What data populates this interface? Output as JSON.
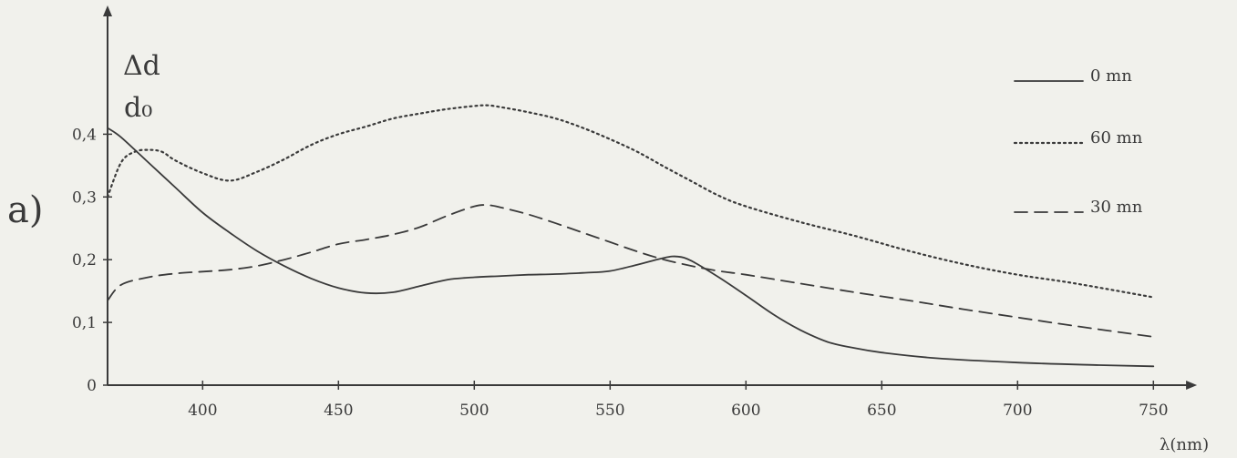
{
  "panel_label": "a)",
  "colors": {
    "ink": "#3a3a3a",
    "background": "#f1f1ec"
  },
  "chart_data": {
    "type": "line",
    "title": "",
    "xlabel": "λ(nm)",
    "ylabel_numerator": "Δd",
    "ylabel_denominator": "d₀",
    "xlim": [
      365,
      760
    ],
    "ylim": [
      0,
      0.46
    ],
    "x_ticks": [
      {
        "value": 400,
        "label": "400"
      },
      {
        "value": 450,
        "label": "450"
      },
      {
        "value": 500,
        "label": "500"
      },
      {
        "value": 550,
        "label": "550"
      },
      {
        "value": 600,
        "label": "600"
      },
      {
        "value": 650,
        "label": "650"
      },
      {
        "value": 700,
        "label": "700"
      },
      {
        "value": 750,
        "label": "750"
      }
    ],
    "y_ticks": [
      {
        "value": 0,
        "label": "0"
      },
      {
        "value": 0.1,
        "label": "0,1"
      },
      {
        "value": 0.2,
        "label": "0,2"
      },
      {
        "value": 0.3,
        "label": "0,3"
      },
      {
        "value": 0.4,
        "label": "0,4"
      }
    ],
    "grid": false,
    "legend_position": "top-right",
    "series": [
      {
        "name": "0 mn",
        "style": "solid",
        "x": [
          365,
          370,
          380,
          390,
          400,
          410,
          420,
          430,
          440,
          450,
          460,
          470,
          480,
          490,
          500,
          510,
          520,
          530,
          540,
          550,
          560,
          570,
          575,
          580,
          590,
          600,
          610,
          620,
          630,
          640,
          650,
          670,
          700,
          730,
          750
        ],
        "y": [
          0.41,
          0.395,
          0.355,
          0.315,
          0.275,
          0.243,
          0.214,
          0.19,
          0.17,
          0.155,
          0.147,
          0.148,
          0.158,
          0.168,
          0.172,
          0.174,
          0.176,
          0.177,
          0.179,
          0.182,
          0.192,
          0.203,
          0.205,
          0.198,
          0.172,
          0.143,
          0.113,
          0.088,
          0.069,
          0.059,
          0.052,
          0.043,
          0.036,
          0.032,
          0.03
        ]
      },
      {
        "name": "60 mn",
        "style": "dotted",
        "x": [
          365,
          370,
          375,
          380,
          385,
          390,
          400,
          410,
          420,
          430,
          440,
          450,
          460,
          470,
          480,
          490,
          500,
          505,
          510,
          520,
          530,
          540,
          550,
          560,
          570,
          580,
          590,
          600,
          620,
          640,
          660,
          680,
          700,
          720,
          750
        ],
        "y": [
          0.3,
          0.355,
          0.372,
          0.375,
          0.372,
          0.358,
          0.338,
          0.326,
          0.34,
          0.36,
          0.383,
          0.4,
          0.412,
          0.425,
          0.433,
          0.44,
          0.445,
          0.446,
          0.443,
          0.435,
          0.425,
          0.41,
          0.392,
          0.372,
          0.348,
          0.325,
          0.302,
          0.285,
          0.26,
          0.238,
          0.214,
          0.193,
          0.176,
          0.163,
          0.14
        ]
      },
      {
        "name": "30 mn",
        "style": "dashed",
        "x": [
          365,
          370,
          380,
          390,
          400,
          410,
          420,
          430,
          440,
          450,
          460,
          470,
          480,
          490,
          500,
          505,
          510,
          520,
          530,
          540,
          550,
          560,
          570,
          580,
          590,
          600,
          620,
          640,
          660,
          680,
          700,
          720,
          750
        ],
        "y": [
          0.135,
          0.16,
          0.172,
          0.178,
          0.181,
          0.184,
          0.19,
          0.2,
          0.212,
          0.225,
          0.232,
          0.24,
          0.252,
          0.27,
          0.285,
          0.287,
          0.283,
          0.272,
          0.258,
          0.243,
          0.228,
          0.213,
          0.2,
          0.19,
          0.182,
          0.176,
          0.162,
          0.148,
          0.135,
          0.121,
          0.108,
          0.095,
          0.077
        ]
      }
    ]
  }
}
